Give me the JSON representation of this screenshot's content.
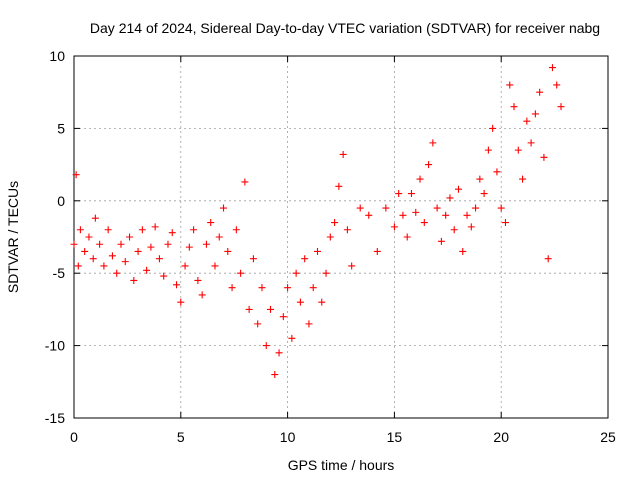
{
  "chart_data": {
    "type": "scatter",
    "title": "Day 214 of 2024, Sidereal Day-to-day VTEC variation (SDTVAR) for receiver nabg",
    "xlabel": "GPS time / hours",
    "ylabel": "SDTVAR / TECUs",
    "xlim": [
      0,
      25
    ],
    "ylim": [
      -15,
      10
    ],
    "x_ticks": [
      0,
      5,
      10,
      15,
      20,
      25
    ],
    "x_tick_labels": [
      "0",
      "5",
      "10",
      "15",
      "20",
      "25"
    ],
    "y_ticks": [
      -15,
      -10,
      -5,
      0,
      5,
      10
    ],
    "y_tick_labels": [
      "-15",
      "-10",
      "-5",
      "0",
      "5",
      "10"
    ],
    "grid": true,
    "marker": "+",
    "series": [
      {
        "name": "SDTVAR",
        "color": "#ff0000",
        "x": [
          0.0,
          0.1,
          0.2,
          0.3,
          0.5,
          0.7,
          0.9,
          1.0,
          1.2,
          1.4,
          1.6,
          1.8,
          2.0,
          2.2,
          2.4,
          2.6,
          2.8,
          3.0,
          3.2,
          3.4,
          3.6,
          3.8,
          4.0,
          4.2,
          4.4,
          4.6,
          4.8,
          5.0,
          5.2,
          5.4,
          5.6,
          5.8,
          6.0,
          6.2,
          6.4,
          6.6,
          6.8,
          7.0,
          7.2,
          7.4,
          7.6,
          7.8,
          8.0,
          8.2,
          8.4,
          8.6,
          8.8,
          9.0,
          9.2,
          9.4,
          9.6,
          9.8,
          10.0,
          10.2,
          10.4,
          10.6,
          10.8,
          11.0,
          11.2,
          11.4,
          11.6,
          11.8,
          12.0,
          12.2,
          12.4,
          12.6,
          12.8,
          13.0,
          13.4,
          13.8,
          14.2,
          14.6,
          15.0,
          15.2,
          15.4,
          15.6,
          15.8,
          16.0,
          16.2,
          16.4,
          16.6,
          16.8,
          17.0,
          17.2,
          17.4,
          17.6,
          17.8,
          18.0,
          18.2,
          18.4,
          18.6,
          18.8,
          19.0,
          19.2,
          19.4,
          19.6,
          19.8,
          20.0,
          20.2,
          20.4,
          20.6,
          20.8,
          21.0,
          21.2,
          21.4,
          21.6,
          21.8,
          22.0,
          22.2,
          22.4,
          22.6,
          22.8
        ],
        "y": [
          -3.0,
          1.8,
          -4.5,
          -2.0,
          -3.5,
          -2.5,
          -4.0,
          -1.2,
          -3.0,
          -4.5,
          -2.0,
          -3.8,
          -5.0,
          -3.0,
          -4.2,
          -2.5,
          -5.5,
          -3.5,
          -2.0,
          -4.8,
          -3.2,
          -1.8,
          -4.0,
          -5.2,
          -3.0,
          -2.2,
          -5.8,
          -7.0,
          -4.5,
          -3.2,
          -2.0,
          -5.5,
          -6.5,
          -3.0,
          -1.5,
          -4.5,
          -2.5,
          -0.5,
          -3.5,
          -6.0,
          -2.0,
          -5.0,
          1.3,
          -7.5,
          -4.0,
          -8.5,
          -6.0,
          -10.0,
          -7.5,
          -12.0,
          -10.5,
          -8.0,
          -6.0,
          -9.5,
          -5.0,
          -7.0,
          -4.0,
          -8.5,
          -6.0,
          -3.5,
          -7.0,
          -5.0,
          -2.5,
          -1.5,
          1.0,
          3.2,
          -2.0,
          -4.5,
          -0.5,
          -1.0,
          -3.5,
          -0.5,
          -1.8,
          0.5,
          -1.0,
          -2.5,
          0.5,
          -0.8,
          1.5,
          -1.5,
          2.5,
          4.0,
          -0.5,
          -2.8,
          -1.0,
          0.2,
          -2.0,
          0.8,
          -3.5,
          -1.0,
          -1.8,
          -0.5,
          1.5,
          0.5,
          3.5,
          5.0,
          2.0,
          -0.5,
          -1.5,
          8.0,
          6.5,
          3.5,
          1.5,
          5.5,
          4.0,
          6.0,
          7.5,
          3.0,
          -4.0,
          9.2,
          8.0,
          6.5
        ]
      }
    ]
  }
}
